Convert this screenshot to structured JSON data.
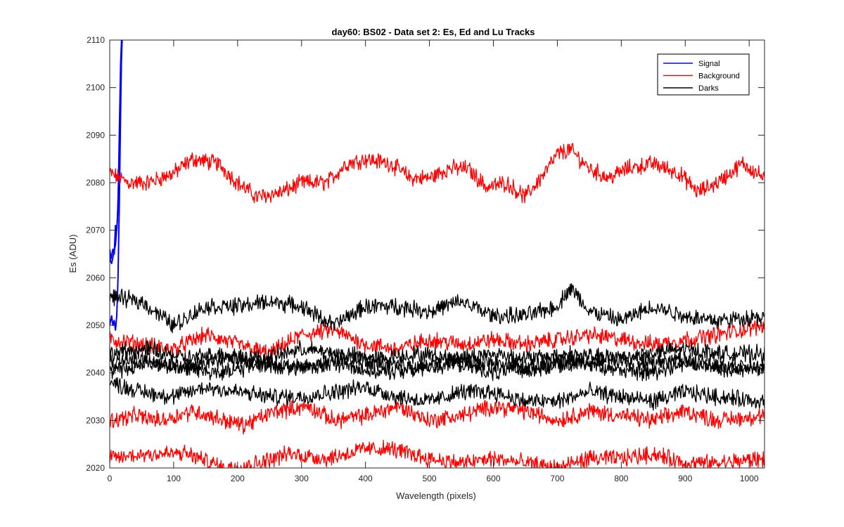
{
  "chart_data": {
    "type": "line",
    "title": "day60: BS02 - Data set 2: Es, Ed and Lu Tracks",
    "xlabel": "Wavelength (pixels)",
    "ylabel": "Es (ADU)",
    "xlim": [
      0,
      1024
    ],
    "ylim": [
      2020,
      2110
    ],
    "xticks": [
      0,
      100,
      200,
      300,
      400,
      500,
      600,
      700,
      800,
      900,
      1000
    ],
    "yticks": [
      2020,
      2030,
      2040,
      2050,
      2060,
      2070,
      2080,
      2090,
      2100,
      2110
    ],
    "grid": false,
    "legend": {
      "placement": "top-right",
      "entries": [
        {
          "label": "Signal",
          "color": "#0000ff"
        },
        {
          "label": "Background",
          "color": "#ff0000"
        },
        {
          "label": "Darks",
          "color": "#000000"
        }
      ]
    },
    "series": [
      {
        "group": "Signal",
        "color": "#0000ff",
        "points": [
          [
            0,
            2066
          ],
          [
            2,
            2064
          ],
          [
            5,
            2066
          ],
          [
            7,
            2065
          ],
          [
            9,
            2071
          ],
          [
            11,
            2070
          ],
          [
            13,
            2075
          ],
          [
            15,
            2090
          ],
          [
            17,
            2105
          ],
          [
            19,
            2112
          ]
        ]
      },
      {
        "group": "Signal",
        "color": "#0000ff",
        "points": [
          [
            0,
            2050
          ],
          [
            3,
            2052
          ],
          [
            5,
            2050
          ],
          [
            7,
            2051
          ],
          [
            9,
            2049
          ],
          [
            11,
            2052
          ],
          [
            13,
            2060
          ],
          [
            15,
            2075
          ],
          [
            17,
            2095
          ],
          [
            19,
            2112
          ]
        ]
      },
      {
        "group": "Signal",
        "color": "#0000ff",
        "points": [
          [
            0,
            2064
          ],
          [
            3,
            2063
          ],
          [
            6,
            2065
          ],
          [
            9,
            2067
          ],
          [
            12,
            2072
          ],
          [
            15,
            2085
          ],
          [
            18,
            2105
          ],
          [
            20,
            2112
          ]
        ]
      },
      {
        "group": "Background",
        "color": "#ff0000",
        "points": [
          [
            0,
            2082
          ],
          [
            30,
            2080
          ],
          [
            60,
            2080
          ],
          [
            100,
            2082
          ],
          [
            130,
            2085
          ],
          [
            170,
            2084
          ],
          [
            200,
            2080
          ],
          [
            230,
            2077
          ],
          [
            270,
            2078
          ],
          [
            300,
            2080
          ],
          [
            340,
            2080
          ],
          [
            370,
            2084
          ],
          [
            400,
            2085
          ],
          [
            440,
            2084
          ],
          [
            470,
            2081
          ],
          [
            500,
            2081
          ],
          [
            530,
            2083
          ],
          [
            560,
            2083
          ],
          [
            590,
            2079
          ],
          [
            620,
            2080
          ],
          [
            650,
            2077
          ],
          [
            680,
            2082
          ],
          [
            700,
            2086
          ],
          [
            720,
            2087
          ],
          [
            750,
            2083
          ],
          [
            780,
            2081
          ],
          [
            810,
            2083
          ],
          [
            850,
            2084
          ],
          [
            890,
            2082
          ],
          [
            920,
            2078
          ],
          [
            950,
            2080
          ],
          [
            990,
            2084
          ],
          [
            1024,
            2081
          ]
        ]
      },
      {
        "group": "Background",
        "color": "#ff0000",
        "points": [
          [
            0,
            2047
          ],
          [
            50,
            2046
          ],
          [
            100,
            2045
          ],
          [
            150,
            2048
          ],
          [
            200,
            2046
          ],
          [
            250,
            2044
          ],
          [
            300,
            2048
          ],
          [
            350,
            2049
          ],
          [
            400,
            2046
          ],
          [
            450,
            2045
          ],
          [
            500,
            2047
          ],
          [
            550,
            2046
          ],
          [
            600,
            2047
          ],
          [
            650,
            2046
          ],
          [
            700,
            2047
          ],
          [
            750,
            2048
          ],
          [
            800,
            2047
          ],
          [
            850,
            2046
          ],
          [
            900,
            2047
          ],
          [
            950,
            2048
          ],
          [
            1024,
            2050
          ]
        ]
      },
      {
        "group": "Background",
        "color": "#ff0000",
        "points": [
          [
            0,
            2030
          ],
          [
            40,
            2031
          ],
          [
            80,
            2030
          ],
          [
            130,
            2032
          ],
          [
            180,
            2030
          ],
          [
            210,
            2029
          ],
          [
            260,
            2032
          ],
          [
            310,
            2033
          ],
          [
            350,
            2030
          ],
          [
            400,
            2031
          ],
          [
            450,
            2033
          ],
          [
            500,
            2030
          ],
          [
            550,
            2031
          ],
          [
            600,
            2033
          ],
          [
            650,
            2032
          ],
          [
            700,
            2030
          ],
          [
            750,
            2032
          ],
          [
            800,
            2031
          ],
          [
            850,
            2030
          ],
          [
            900,
            2032
          ],
          [
            950,
            2030
          ],
          [
            1024,
            2031
          ]
        ]
      },
      {
        "group": "Background",
        "color": "#ff0000",
        "points": [
          [
            0,
            2022
          ],
          [
            60,
            2023
          ],
          [
            120,
            2023
          ],
          [
            180,
            2020
          ],
          [
            230,
            2021
          ],
          [
            280,
            2023
          ],
          [
            340,
            2022
          ],
          [
            400,
            2024
          ],
          [
            440,
            2024
          ],
          [
            500,
            2022
          ],
          [
            550,
            2021
          ],
          [
            600,
            2022
          ],
          [
            650,
            2021
          ],
          [
            700,
            2020
          ],
          [
            750,
            2022
          ],
          [
            800,
            2022
          ],
          [
            850,
            2023
          ],
          [
            900,
            2021
          ],
          [
            950,
            2021
          ],
          [
            1024,
            2022
          ]
        ]
      },
      {
        "group": "Darks",
        "color": "#000000",
        "points": [
          [
            0,
            2056
          ],
          [
            50,
            2055
          ],
          [
            100,
            2050
          ],
          [
            150,
            2054
          ],
          [
            200,
            2054
          ],
          [
            250,
            2055
          ],
          [
            300,
            2054
          ],
          [
            350,
            2050
          ],
          [
            400,
            2054
          ],
          [
            450,
            2054
          ],
          [
            500,
            2053
          ],
          [
            550,
            2055
          ],
          [
            600,
            2052
          ],
          [
            650,
            2052
          ],
          [
            700,
            2054
          ],
          [
            720,
            2058
          ],
          [
            750,
            2053
          ],
          [
            800,
            2051
          ],
          [
            850,
            2054
          ],
          [
            900,
            2052
          ],
          [
            950,
            2051
          ],
          [
            1024,
            2052
          ]
        ]
      },
      {
        "group": "Darks",
        "color": "#000000",
        "points": [
          [
            0,
            2044
          ],
          [
            60,
            2045
          ],
          [
            120,
            2043
          ],
          [
            180,
            2044
          ],
          [
            240,
            2043
          ],
          [
            300,
            2045
          ],
          [
            360,
            2044
          ],
          [
            420,
            2043
          ],
          [
            480,
            2044
          ],
          [
            540,
            2043
          ],
          [
            600,
            2044
          ],
          [
            660,
            2043
          ],
          [
            720,
            2044
          ],
          [
            780,
            2043
          ],
          [
            840,
            2044
          ],
          [
            900,
            2045
          ],
          [
            960,
            2044
          ],
          [
            1024,
            2044
          ]
        ]
      },
      {
        "group": "Darks",
        "color": "#000000",
        "points": [
          [
            0,
            2042
          ],
          [
            60,
            2043
          ],
          [
            120,
            2041
          ],
          [
            180,
            2043
          ],
          [
            240,
            2042
          ],
          [
            300,
            2041
          ],
          [
            360,
            2043
          ],
          [
            420,
            2042
          ],
          [
            480,
            2041
          ],
          [
            540,
            2043
          ],
          [
            600,
            2042
          ],
          [
            660,
            2041
          ],
          [
            720,
            2042
          ],
          [
            780,
            2043
          ],
          [
            840,
            2042
          ],
          [
            900,
            2043
          ],
          [
            960,
            2041
          ],
          [
            1024,
            2042
          ]
        ]
      },
      {
        "group": "Darks",
        "color": "#000000",
        "points": [
          [
            0,
            2040
          ],
          [
            60,
            2042
          ],
          [
            120,
            2041
          ],
          [
            180,
            2040
          ],
          [
            240,
            2042
          ],
          [
            300,
            2041
          ],
          [
            360,
            2042
          ],
          [
            420,
            2040
          ],
          [
            480,
            2041
          ],
          [
            540,
            2042
          ],
          [
            600,
            2040
          ],
          [
            660,
            2041
          ],
          [
            720,
            2043
          ],
          [
            780,
            2041
          ],
          [
            840,
            2040
          ],
          [
            900,
            2042
          ],
          [
            960,
            2041
          ],
          [
            1024,
            2041
          ]
        ]
      },
      {
        "group": "Darks",
        "color": "#000000",
        "points": [
          [
            0,
            2038
          ],
          [
            50,
            2036
          ],
          [
            100,
            2035
          ],
          [
            150,
            2037
          ],
          [
            200,
            2036
          ],
          [
            250,
            2035
          ],
          [
            300,
            2035
          ],
          [
            350,
            2036
          ],
          [
            400,
            2037
          ],
          [
            450,
            2035
          ],
          [
            500,
            2034
          ],
          [
            550,
            2036
          ],
          [
            600,
            2036
          ],
          [
            650,
            2034
          ],
          [
            700,
            2034
          ],
          [
            750,
            2036
          ],
          [
            800,
            2035
          ],
          [
            850,
            2034
          ],
          [
            900,
            2036
          ],
          [
            950,
            2035
          ],
          [
            1024,
            2034
          ]
        ]
      }
    ]
  }
}
